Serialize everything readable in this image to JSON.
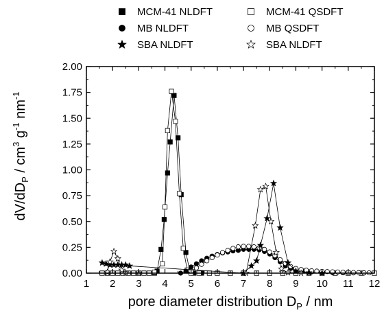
{
  "chart_data": {
    "type": "scatter",
    "xlabel": {
      "main": "pore diameter distribution D",
      "sub": "P",
      "tail": " / nm"
    },
    "ylabel": {
      "parts": [
        "dV/dD",
        "P",
        " / cm",
        "3",
        " g",
        "-1",
        " nm",
        "-1"
      ]
    },
    "xlim": [
      1,
      12
    ],
    "ylim": [
      0,
      2.0
    ],
    "x_ticks": [
      "1",
      "2",
      "3",
      "4",
      "5",
      "6",
      "7",
      "8",
      "9",
      "10",
      "11",
      "12"
    ],
    "y_ticks": [
      "0.00",
      "0.25",
      "0.50",
      "0.75",
      "1.00",
      "1.25",
      "1.50",
      "1.75",
      "2.00"
    ],
    "legend_position": "top",
    "grid": false,
    "series": [
      {
        "name": "MCM-41 NLDFT",
        "marker": "square",
        "filled": true,
        "points": [
          [
            1.6,
            0
          ],
          [
            1.8,
            0
          ],
          [
            2.0,
            0
          ],
          [
            2.2,
            0
          ],
          [
            2.4,
            0
          ],
          [
            2.6,
            0
          ],
          [
            2.8,
            0
          ],
          [
            3.0,
            0
          ],
          [
            3.2,
            0
          ],
          [
            3.4,
            0
          ],
          [
            3.6,
            0
          ],
          [
            3.7,
            0.02
          ],
          [
            3.85,
            0.23
          ],
          [
            3.97,
            0.52
          ],
          [
            4.1,
            0.97
          ],
          [
            4.2,
            1.27
          ],
          [
            4.35,
            1.72
          ],
          [
            4.5,
            1.31
          ],
          [
            4.62,
            0.76
          ],
          [
            4.8,
            0.2
          ],
          [
            4.95,
            0.02
          ],
          [
            5.1,
            0
          ],
          [
            5.4,
            0
          ],
          [
            5.7,
            0
          ],
          [
            6,
            0
          ],
          [
            6.5,
            0
          ],
          [
            7,
            0
          ],
          [
            7.5,
            0
          ],
          [
            8,
            0
          ],
          [
            8.5,
            0
          ],
          [
            9,
            0
          ],
          [
            9.5,
            0
          ],
          [
            10,
            0
          ],
          [
            10.5,
            0
          ],
          [
            11,
            0
          ],
          [
            11.5,
            0
          ],
          [
            12,
            0
          ]
        ]
      },
      {
        "name": "MCM-41 QSDFT",
        "marker": "square",
        "filled": false,
        "points": [
          [
            1.6,
            0
          ],
          [
            1.8,
            0
          ],
          [
            2.0,
            0
          ],
          [
            2.2,
            0
          ],
          [
            2.4,
            0
          ],
          [
            2.6,
            0
          ],
          [
            2.8,
            0
          ],
          [
            3.0,
            0
          ],
          [
            3.2,
            0
          ],
          [
            3.4,
            0
          ],
          [
            3.6,
            0.01
          ],
          [
            3.9,
            0.09
          ],
          [
            4.0,
            0.64
          ],
          [
            4.1,
            1.38
          ],
          [
            4.25,
            1.76
          ],
          [
            4.4,
            1.47
          ],
          [
            4.55,
            0.77
          ],
          [
            4.7,
            0.24
          ],
          [
            4.85,
            0.03
          ],
          [
            5.0,
            0
          ],
          [
            5.3,
            0
          ],
          [
            5.7,
            0
          ],
          [
            6,
            0
          ],
          [
            6.5,
            0
          ],
          [
            7,
            0
          ],
          [
            7.5,
            0
          ],
          [
            8,
            0
          ],
          [
            8.5,
            0
          ],
          [
            9,
            0
          ],
          [
            9.5,
            0
          ],
          [
            10,
            0
          ],
          [
            10.5,
            0
          ],
          [
            11,
            0
          ],
          [
            11.5,
            0
          ],
          [
            12,
            0
          ]
        ]
      },
      {
        "name": "MB NLDFT",
        "marker": "circle",
        "filled": true,
        "points": [
          [
            4.6,
            0
          ],
          [
            4.8,
            0.02
          ],
          [
            5.0,
            0.06
          ],
          [
            5.2,
            0.09
          ],
          [
            5.4,
            0.12
          ],
          [
            5.6,
            0.145
          ],
          [
            5.8,
            0.165
          ],
          [
            6.0,
            0.18
          ],
          [
            6.2,
            0.195
          ],
          [
            6.4,
            0.205
          ],
          [
            6.6,
            0.215
          ],
          [
            6.8,
            0.22
          ],
          [
            7.0,
            0.23
          ],
          [
            7.2,
            0.23
          ],
          [
            7.4,
            0.23
          ],
          [
            7.6,
            0.225
          ],
          [
            7.8,
            0.21
          ],
          [
            8.0,
            0.185
          ],
          [
            8.2,
            0.15
          ],
          [
            8.4,
            0.11
          ],
          [
            8.6,
            0.07
          ],
          [
            8.8,
            0.045
          ],
          [
            9.0,
            0.03
          ],
          [
            9.3,
            0.02
          ],
          [
            9.6,
            0.012
          ],
          [
            10.0,
            0.008
          ],
          [
            10.4,
            0.005
          ],
          [
            10.8,
            0.003
          ],
          [
            11.2,
            0.002
          ],
          [
            11.6,
            0.001
          ]
        ]
      },
      {
        "name": "MB QSDFT",
        "marker": "circle",
        "filled": false,
        "points": [
          [
            5.0,
            0.02
          ],
          [
            5.2,
            0.05
          ],
          [
            5.4,
            0.085
          ],
          [
            5.6,
            0.12
          ],
          [
            5.8,
            0.15
          ],
          [
            6.0,
            0.175
          ],
          [
            6.2,
            0.2
          ],
          [
            6.4,
            0.22
          ],
          [
            6.6,
            0.24
          ],
          [
            6.8,
            0.255
          ],
          [
            7.0,
            0.26
          ],
          [
            7.2,
            0.26
          ],
          [
            7.4,
            0.255
          ],
          [
            7.6,
            0.245
          ],
          [
            7.8,
            0.23
          ],
          [
            8.0,
            0.205
          ],
          [
            8.2,
            0.17
          ],
          [
            8.4,
            0.13
          ],
          [
            8.6,
            0.095
          ],
          [
            8.8,
            0.065
          ],
          [
            9.0,
            0.045
          ],
          [
            9.2,
            0.035
          ],
          [
            9.4,
            0.028
          ],
          [
            9.6,
            0.023
          ],
          [
            9.8,
            0.02
          ],
          [
            10.0,
            0.017
          ],
          [
            10.2,
            0.015
          ],
          [
            10.4,
            0.013
          ],
          [
            10.6,
            0.011
          ],
          [
            10.8,
            0.009
          ],
          [
            11.0,
            0.007
          ],
          [
            11.2,
            0.006
          ],
          [
            11.4,
            0.005
          ],
          [
            11.6,
            0.004
          ],
          [
            11.8,
            0.003
          ]
        ]
      },
      {
        "name": "SBA NLDFT",
        "marker": "star",
        "filled": true,
        "points": [
          [
            1.6,
            0.1
          ],
          [
            1.75,
            0.09
          ],
          [
            1.9,
            0.08
          ],
          [
            2.05,
            0.08
          ],
          [
            2.2,
            0.08
          ],
          [
            2.35,
            0.08
          ],
          [
            2.5,
            0.08
          ],
          [
            2.65,
            0.07
          ],
          [
            7.0,
            0
          ],
          [
            7.3,
            0.07
          ],
          [
            7.5,
            0.12
          ],
          [
            7.65,
            0.27
          ],
          [
            7.9,
            0.53
          ],
          [
            8.15,
            0.87
          ],
          [
            8.4,
            0.44
          ],
          [
            8.7,
            0.1
          ],
          [
            9.0,
            0.02
          ],
          [
            9.5,
            0.005
          ],
          [
            10.0,
            0
          ]
        ]
      },
      {
        "name": "SBA NLDFT",
        "marker": "star",
        "filled": false,
        "points": [
          [
            1.8,
            0.01
          ],
          [
            1.9,
            0.11
          ],
          [
            2.05,
            0.21
          ],
          [
            2.2,
            0.14
          ],
          [
            2.35,
            0.03
          ],
          [
            2.5,
            0.005
          ],
          [
            3.0,
            0
          ],
          [
            7.1,
            0
          ],
          [
            7.45,
            0.46
          ],
          [
            7.65,
            0.81
          ],
          [
            7.85,
            0.84
          ],
          [
            8.05,
            0.5
          ],
          [
            8.25,
            0.2
          ],
          [
            8.45,
            0.04
          ],
          [
            8.7,
            0.005
          ],
          [
            9.2,
            0
          ]
        ]
      }
    ]
  }
}
